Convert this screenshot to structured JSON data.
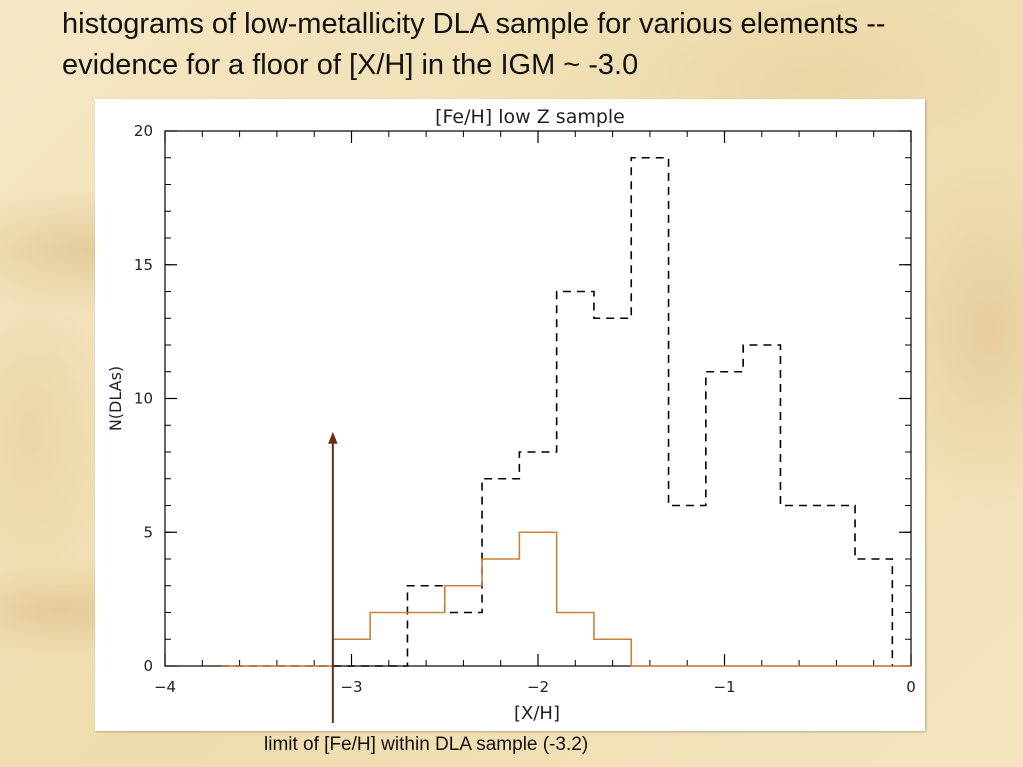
{
  "slide": {
    "title": "histograms of low-metallicity DLA sample for various elements -- evidence for a floor of [X/H] in the IGM ~ -3.0",
    "caption": "limit of [Fe/H] within DLA sample (-3.2)"
  },
  "chart_data": {
    "type": "step-histogram",
    "title": "[Fe/H] low Z sample",
    "xlabel": "[X/H]",
    "ylabel": "N(DLAs)",
    "xlim": [
      -4,
      0
    ],
    "ylim": [
      0,
      20
    ],
    "x_ticks": [
      -4,
      -3,
      -2,
      -1,
      0
    ],
    "x_tick_labels": [
      "−4",
      "−3",
      "−2",
      "−1",
      "0"
    ],
    "y_ticks": [
      0,
      5,
      10,
      15,
      20
    ],
    "y_tick_labels": [
      "0",
      "5",
      "10",
      "15",
      "20"
    ],
    "grid": false,
    "bin_edges": [
      -3.7,
      -3.5,
      -3.3,
      -3.1,
      -2.9,
      -2.7,
      -2.5,
      -2.3,
      -2.1,
      -1.9,
      -1.7,
      -1.5,
      -1.3,
      -1.1,
      -0.9,
      -0.7,
      -0.5,
      -0.3,
      -0.1
    ],
    "series": [
      {
        "style": "dashed",
        "color": "#000000",
        "counts": [
          0,
          0,
          0,
          0,
          0,
          3,
          2,
          7,
          8,
          14,
          13,
          19,
          6,
          11,
          12,
          6,
          6,
          4
        ]
      },
      {
        "style": "solid",
        "color": "#c8843c",
        "counts": [
          0,
          0,
          0,
          1,
          2,
          2,
          3,
          4,
          5,
          2,
          1,
          0,
          0,
          0,
          0,
          0,
          0,
          0
        ]
      }
    ],
    "annotation": {
      "type": "arrow",
      "x": -3.1,
      "y_top": 8.7,
      "color": "#6b2a12"
    }
  }
}
